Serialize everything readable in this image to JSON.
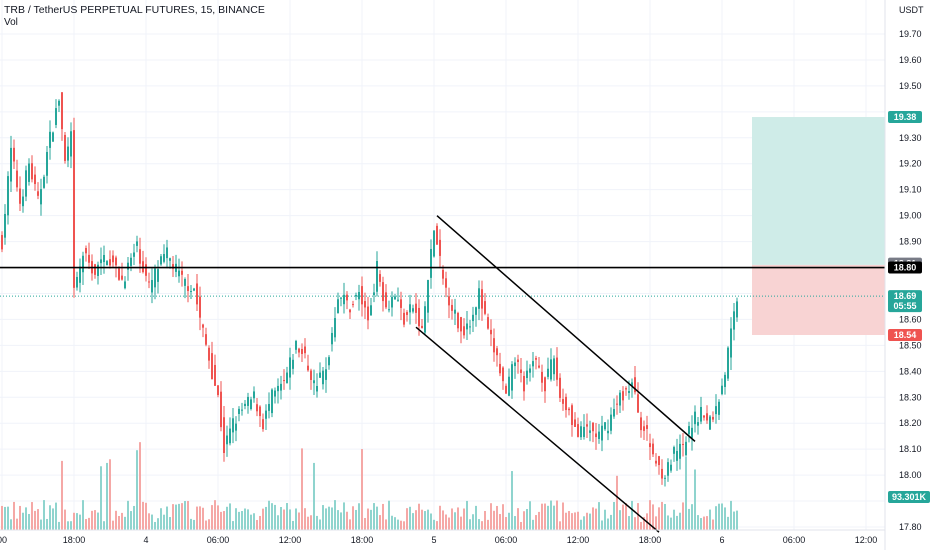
{
  "header": {
    "title": "TRB / TetherUS PERPETUAL FUTURES, 15, BINANCE",
    "vol_label": "Vol"
  },
  "colors": {
    "up": "#26a69a",
    "down": "#ef5350",
    "up_vol": "#8fd4ce",
    "down_vol": "#f5a8a6",
    "profit_zone": "#cfece8",
    "loss_zone": "#f8d3d3",
    "line": "#000000",
    "grid": "#f0f3fa",
    "axis_text": "#131722"
  },
  "chart_data": {
    "type": "candlestick",
    "symbol": "TRB / TetherUS PERPETUAL FUTURES",
    "interval": "15",
    "exchange": "BINANCE",
    "currency": "USDT",
    "y_ticks": [
      17.8,
      17.9,
      18.0,
      18.1,
      18.2,
      18.3,
      18.4,
      18.5,
      18.6,
      18.7,
      18.8,
      18.9,
      19.0,
      19.1,
      19.2,
      19.3,
      19.4,
      19.5,
      19.6,
      19.7
    ],
    "y_tick_labels": [
      "17.80",
      "",
      "18.00",
      "18.10",
      "18.20",
      "18.30",
      "18.40",
      "18.50",
      "18.60",
      "",
      "",
      "18.90",
      "19.00",
      "19.10",
      "19.20",
      "19.30",
      "",
      "19.50",
      "19.60",
      "19.70"
    ],
    "ylim": [
      17.77,
      19.85
    ],
    "x_ticks": [
      "00",
      "18:00",
      "4",
      "06:00",
      "12:00",
      "18:00",
      "5",
      "06:00",
      "12:00",
      "18:00",
      "6",
      "06:00",
      "12:00"
    ],
    "x_tick_bar_index": [
      0,
      24,
      48,
      72,
      96,
      120,
      144,
      168,
      192,
      216,
      240,
      264,
      288
    ],
    "anchors": [
      {
        "i": 0,
        "p": 18.9
      },
      {
        "i": 3,
        "p": 19.25
      },
      {
        "i": 6,
        "p": 19.05
      },
      {
        "i": 9,
        "p": 19.2
      },
      {
        "i": 12,
        "p": 19.05
      },
      {
        "i": 16,
        "p": 19.3
      },
      {
        "i": 19,
        "p": 19.45
      },
      {
        "i": 21,
        "p": 19.2
      },
      {
        "i": 23,
        "p": 19.3
      },
      {
        "i": 24,
        "p": 18.7
      },
      {
        "i": 27,
        "p": 18.85
      },
      {
        "i": 31,
        "p": 18.78
      },
      {
        "i": 35,
        "p": 18.85
      },
      {
        "i": 40,
        "p": 18.75
      },
      {
        "i": 45,
        "p": 18.88
      },
      {
        "i": 49,
        "p": 18.72
      },
      {
        "i": 52,
        "p": 18.8
      },
      {
        "i": 55,
        "p": 18.85
      },
      {
        "i": 60,
        "p": 18.75
      },
      {
        "i": 64,
        "p": 18.72
      },
      {
        "i": 66,
        "p": 18.6
      },
      {
        "i": 69,
        "p": 18.45
      },
      {
        "i": 72,
        "p": 18.3
      },
      {
        "i": 74,
        "p": 18.1
      },
      {
        "i": 77,
        "p": 18.2
      },
      {
        "i": 80,
        "p": 18.25
      },
      {
        "i": 84,
        "p": 18.3
      },
      {
        "i": 87,
        "p": 18.2
      },
      {
        "i": 90,
        "p": 18.3
      },
      {
        "i": 94,
        "p": 18.35
      },
      {
        "i": 98,
        "p": 18.5
      },
      {
        "i": 101,
        "p": 18.45
      },
      {
        "i": 104,
        "p": 18.35
      },
      {
        "i": 108,
        "p": 18.4
      },
      {
        "i": 112,
        "p": 18.7
      },
      {
        "i": 116,
        "p": 18.65
      },
      {
        "i": 119,
        "p": 18.7
      },
      {
        "i": 122,
        "p": 18.6
      },
      {
        "i": 125,
        "p": 18.8
      },
      {
        "i": 128,
        "p": 18.65
      },
      {
        "i": 131,
        "p": 18.7
      },
      {
        "i": 134,
        "p": 18.6
      },
      {
        "i": 137,
        "p": 18.65
      },
      {
        "i": 140,
        "p": 18.55
      },
      {
        "i": 144,
        "p": 18.95
      },
      {
        "i": 147,
        "p": 18.75
      },
      {
        "i": 150,
        "p": 18.65
      },
      {
        "i": 153,
        "p": 18.55
      },
      {
        "i": 156,
        "p": 18.6
      },
      {
        "i": 159,
        "p": 18.7
      },
      {
        "i": 162,
        "p": 18.55
      },
      {
        "i": 165,
        "p": 18.45
      },
      {
        "i": 168,
        "p": 18.3
      },
      {
        "i": 171,
        "p": 18.45
      },
      {
        "i": 174,
        "p": 18.35
      },
      {
        "i": 178,
        "p": 18.45
      },
      {
        "i": 181,
        "p": 18.35
      },
      {
        "i": 184,
        "p": 18.45
      },
      {
        "i": 186,
        "p": 18.3
      },
      {
        "i": 189,
        "p": 18.25
      },
      {
        "i": 192,
        "p": 18.15
      },
      {
        "i": 195,
        "p": 18.18
      },
      {
        "i": 199,
        "p": 18.15
      },
      {
        "i": 202,
        "p": 18.2
      },
      {
        "i": 206,
        "p": 18.3
      },
      {
        "i": 210,
        "p": 18.35
      },
      {
        "i": 213,
        "p": 18.2
      },
      {
        "i": 215,
        "p": 18.15
      },
      {
        "i": 218,
        "p": 18.05
      },
      {
        "i": 221,
        "p": 18.0
      },
      {
        "i": 224,
        "p": 18.08
      },
      {
        "i": 227,
        "p": 18.1
      },
      {
        "i": 230,
        "p": 18.2
      },
      {
        "i": 233,
        "p": 18.25
      },
      {
        "i": 235,
        "p": 18.2
      },
      {
        "i": 238,
        "p": 18.25
      },
      {
        "i": 241,
        "p": 18.4
      },
      {
        "i": 243,
        "p": 18.55
      },
      {
        "i": 245,
        "p": 18.69
      }
    ],
    "trendlines": [
      {
        "from": {
          "i": 145,
          "p": 19.0
        },
        "to": {
          "i": 231,
          "p": 18.13
        }
      },
      {
        "from": {
          "i": 138,
          "p": 18.57
        },
        "to": {
          "i": 219,
          "p": 17.78
        }
      }
    ],
    "horizontal_line": 18.8,
    "position": {
      "start_i": 250,
      "end_i": 293,
      "entry": 18.81,
      "target": 19.38,
      "stop": 18.54
    },
    "last_price": 18.69,
    "countdown": "05:55",
    "price_tags": [
      {
        "label": "19.38",
        "price": 19.38,
        "color": "#26a69a"
      },
      {
        "label": "18.81",
        "price": 18.815,
        "color": "#787b86"
      },
      {
        "label": "18.80",
        "price": 18.8,
        "color": "#000000"
      },
      {
        "label": "18.69",
        "price": 18.69,
        "color": "#26a69a"
      },
      {
        "label": "18.54",
        "price": 18.54,
        "color": "#ef5350"
      }
    ],
    "volume_value": "93.301K",
    "currency_label": "USDT"
  }
}
